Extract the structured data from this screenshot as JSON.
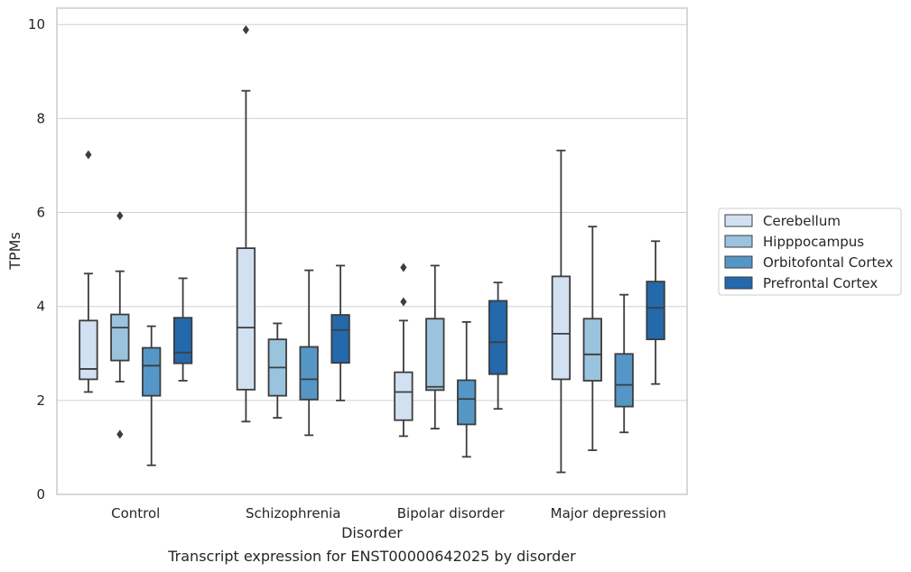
{
  "chart_data": {
    "type": "box",
    "title": "",
    "caption": "Transcript expression for ENST00000642025 by disorder",
    "xlabel": "Disorder",
    "ylabel": "TPMs",
    "ylim": [
      0,
      10.35
    ],
    "yticks": [
      0,
      2,
      4,
      6,
      8,
      10
    ],
    "grid": "horizontal",
    "legend_position": "right",
    "categories": [
      "Control",
      "Schizophrenia",
      "Bipolar disorder",
      "Major depression"
    ],
    "series": [
      {
        "name": "Cerebellum",
        "color": "#d1e1f1",
        "boxes": [
          {
            "whisker_low": 2.18,
            "q1": 2.45,
            "median": 2.67,
            "q3": 3.7,
            "whisker_high": 4.7,
            "outliers": [
              7.23
            ]
          },
          {
            "whisker_low": 1.55,
            "q1": 2.23,
            "median": 3.55,
            "q3": 5.24,
            "whisker_high": 8.59,
            "outliers": [
              9.89
            ]
          },
          {
            "whisker_low": 1.24,
            "q1": 1.58,
            "median": 2.18,
            "q3": 2.6,
            "whisker_high": 3.7,
            "outliers": [
              4.1,
              4.83
            ]
          },
          {
            "whisker_low": 0.47,
            "q1": 2.45,
            "median": 3.42,
            "q3": 4.64,
            "whisker_high": 7.32,
            "outliers": []
          }
        ]
      },
      {
        "name": "Hipppocampus",
        "color": "#9ac3de",
        "boxes": [
          {
            "whisker_low": 2.4,
            "q1": 2.85,
            "median": 3.55,
            "q3": 3.83,
            "whisker_high": 4.75,
            "outliers": [
              1.28,
              5.93
            ]
          },
          {
            "whisker_low": 1.63,
            "q1": 2.1,
            "median": 2.7,
            "q3": 3.3,
            "whisker_high": 3.64,
            "outliers": []
          },
          {
            "whisker_low": 1.4,
            "q1": 2.22,
            "median": 2.29,
            "q3": 3.74,
            "whisker_high": 4.87,
            "outliers": []
          },
          {
            "whisker_low": 0.94,
            "q1": 2.42,
            "median": 2.98,
            "q3": 3.74,
            "whisker_high": 5.7,
            "outliers": []
          }
        ]
      },
      {
        "name": "Orbitofontal Cortex",
        "color": "#5497c7",
        "boxes": [
          {
            "whisker_low": 0.62,
            "q1": 2.1,
            "median": 2.74,
            "q3": 3.12,
            "whisker_high": 3.58,
            "outliers": []
          },
          {
            "whisker_low": 1.26,
            "q1": 2.02,
            "median": 2.45,
            "q3": 3.14,
            "whisker_high": 4.77,
            "outliers": []
          },
          {
            "whisker_low": 0.8,
            "q1": 1.49,
            "median": 2.03,
            "q3": 2.43,
            "whisker_high": 3.67,
            "outliers": []
          },
          {
            "whisker_low": 1.32,
            "q1": 1.87,
            "median": 2.33,
            "q3": 2.99,
            "whisker_high": 4.25,
            "outliers": []
          }
        ]
      },
      {
        "name": "Prefrontal Cortex",
        "color": "#2369ac",
        "boxes": [
          {
            "whisker_low": 2.42,
            "q1": 2.79,
            "median": 3.02,
            "q3": 3.76,
            "whisker_high": 4.6,
            "outliers": []
          },
          {
            "whisker_low": 2.0,
            "q1": 2.8,
            "median": 3.5,
            "q3": 3.82,
            "whisker_high": 4.87,
            "outliers": []
          },
          {
            "whisker_low": 1.82,
            "q1": 2.56,
            "median": 3.24,
            "q3": 4.12,
            "whisker_high": 4.51,
            "outliers": []
          },
          {
            "whisker_low": 2.35,
            "q1": 3.3,
            "median": 3.97,
            "q3": 4.53,
            "whisker_high": 5.39,
            "outliers": []
          }
        ]
      }
    ]
  }
}
